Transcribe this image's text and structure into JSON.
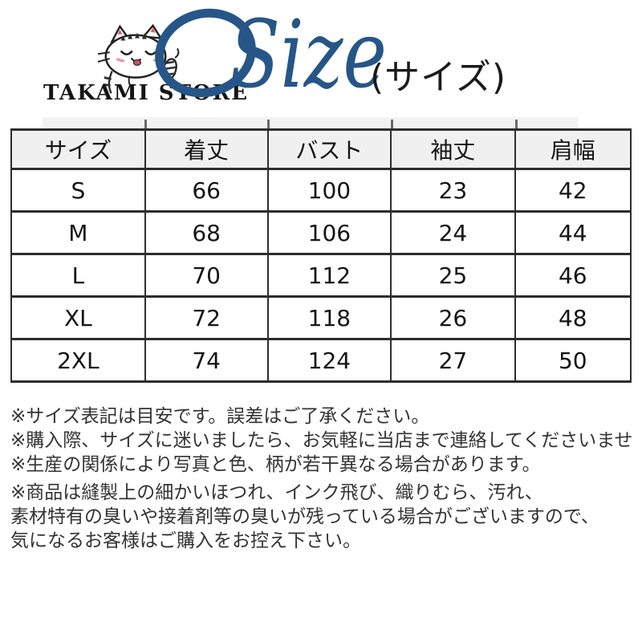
{
  "logo": {
    "store_name": "TAKAMI STORE",
    "mascot": "cat-mascot-icon"
  },
  "title": {
    "script": "Size",
    "subtitle": "(サイズ)"
  },
  "size_table": {
    "headers": [
      "サイズ",
      "着丈",
      "バスト",
      "袖丈",
      "肩幅"
    ],
    "rows": [
      [
        "S",
        "66",
        "100",
        "23",
        "42"
      ],
      [
        "M",
        "68",
        "106",
        "24",
        "44"
      ],
      [
        "L",
        "70",
        "112",
        "25",
        "46"
      ],
      [
        "XL",
        "72",
        "118",
        "26",
        "48"
      ],
      [
        "2XL",
        "74",
        "124",
        "27",
        "50"
      ]
    ]
  },
  "notes": {
    "lines": [
      "※サイズ表記は目安です。誤差はご了承ください。",
      "※購入際、サイズに迷いましたら、お気軽に当店まで連絡してくださいませ",
      "※生産の関係により写真と色、柄が若干異なる場合があります。",
      "※商品は縫製上の細かいほつれ、インク飛び、織りむら、汚れ、",
      "素材特有の臭いや接着剤等の臭いが残っている場合がございますので、",
      "気になるお客様はご購入をお控え下さい。"
    ]
  },
  "colors": {
    "accent": "#265687",
    "table_border": "#2d2d2d",
    "table_header_bg": "#f0f0f0",
    "table_text": "#141414",
    "note_text": "#333333",
    "logo_text": "#151515"
  }
}
